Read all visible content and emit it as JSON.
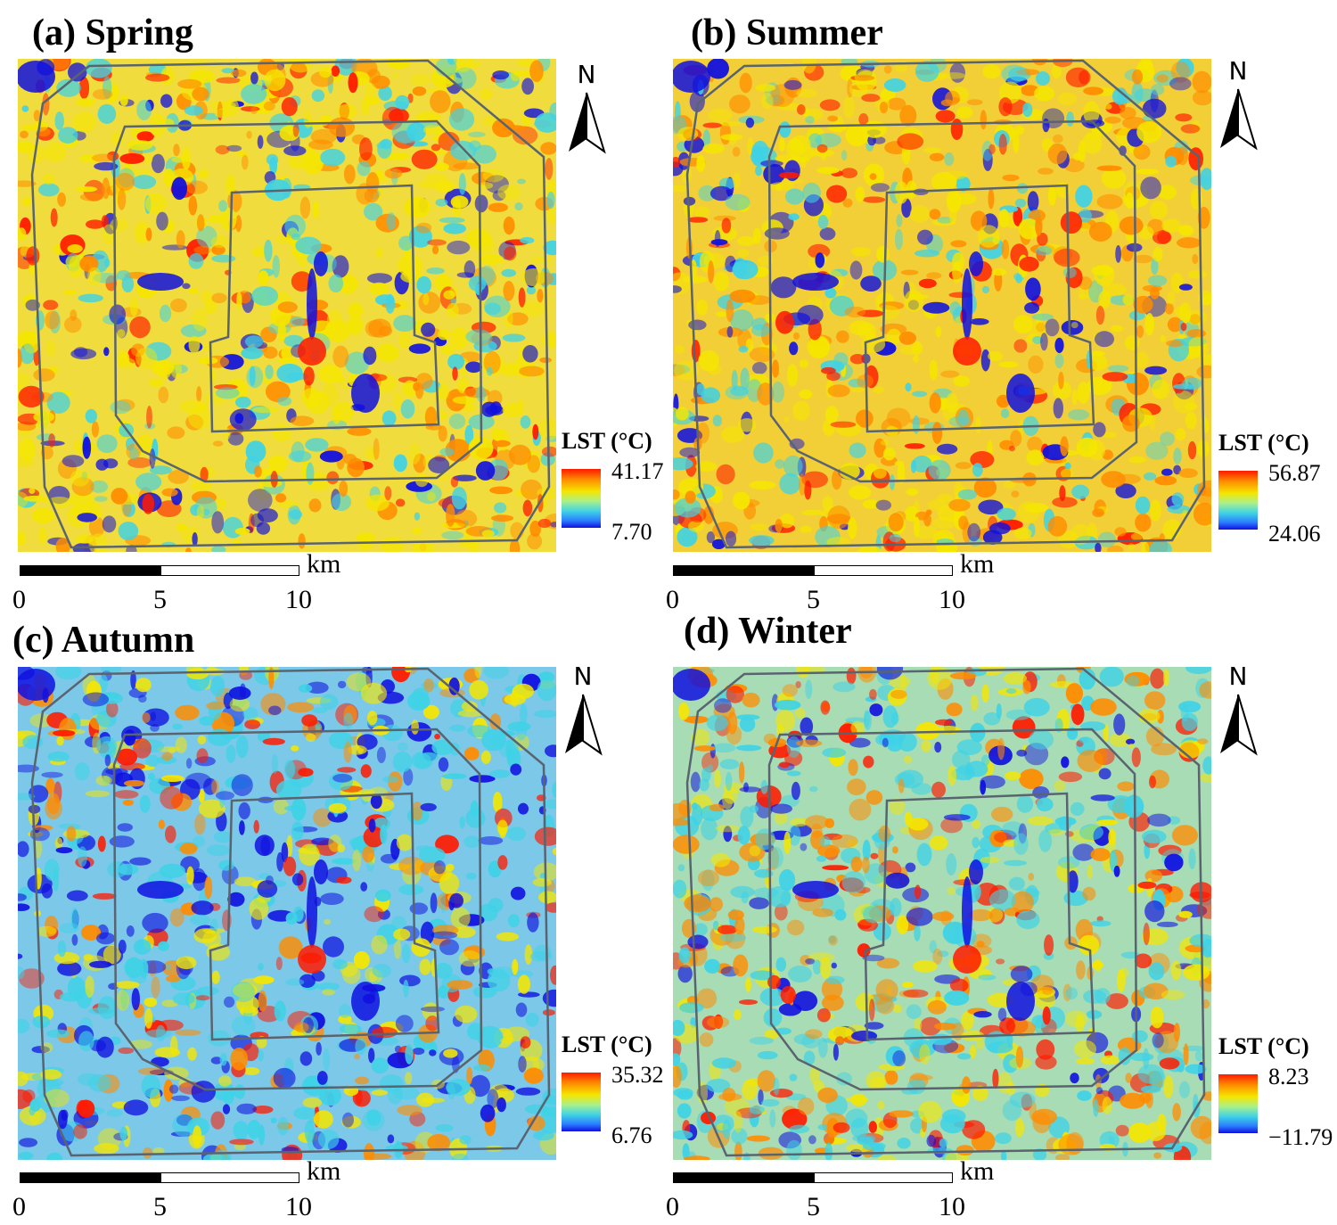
{
  "panels": [
    {
      "title": "(a) Spring",
      "season": "spring",
      "legend_title": "LST (°C)",
      "lst_max": "41.17",
      "lst_min": "7.70",
      "north_label": "N",
      "scale_unit": "km",
      "scale_ticks": [
        "0",
        "5",
        "10"
      ]
    },
    {
      "title": "(b) Summer",
      "season": "summer",
      "legend_title": "LST (°C)",
      "lst_max": "56.87",
      "lst_min": "24.06",
      "north_label": "N",
      "scale_unit": "km",
      "scale_ticks": [
        "0",
        "5",
        "10"
      ]
    },
    {
      "title": "(c) Autumn",
      "season": "autumn",
      "legend_title": "LST (°C)",
      "lst_max": "35.32",
      "lst_min": "6.76",
      "north_label": "N",
      "scale_unit": "km",
      "scale_ticks": [
        "0",
        "5",
        "10"
      ]
    },
    {
      "title": "(d) Winter",
      "season": "winter",
      "legend_title": "LST (°C)",
      "lst_max": "8.23",
      "lst_min": "−11.79",
      "north_label": "N",
      "scale_unit": "km",
      "scale_ticks": [
        "0",
        "5",
        "10"
      ]
    }
  ],
  "colors": {
    "hot": "#ff1a00",
    "warm": "#ff8c00",
    "mid": "#f5e600",
    "cool": "#3fd2e6",
    "cold": "#1010e0",
    "ring_road": "#5a6470"
  }
}
